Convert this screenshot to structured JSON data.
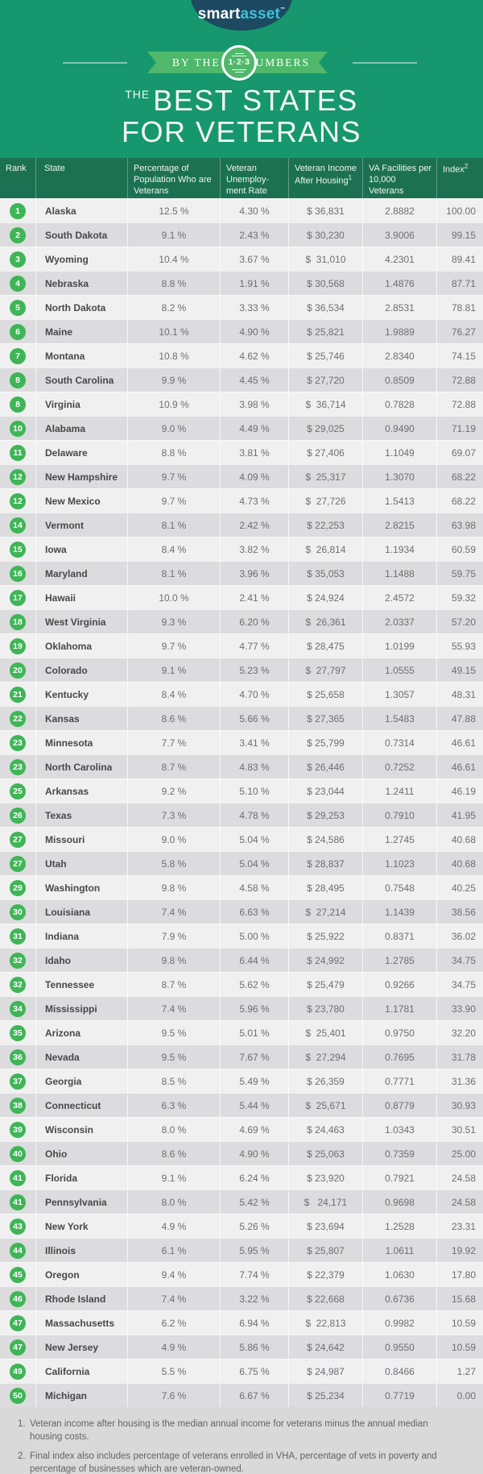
{
  "brand": {
    "smart": "smart",
    "asset": "asset",
    "tm": "™"
  },
  "banner": {
    "left": "BY THE",
    "circle": "1·2·3",
    "right": "NUMBERS"
  },
  "title": {
    "the": "THE",
    "line1": "BEST STATES",
    "line2": "FOR VETERANS"
  },
  "colors": {
    "background": "#16976d",
    "table_header": "#1c7153",
    "ribbon": "#4fb86a",
    "badge": "#3fb557",
    "row_light": "#f0f0f1",
    "row_dark": "#dcdcde",
    "logo_navy": "#1d4a61",
    "logo_teal": "#3fc0d4",
    "footer_bg": "#d9d9d9"
  },
  "chart_data": {
    "type": "table",
    "title": "The Best States for Veterans",
    "columns": {
      "rank": "Rank",
      "state": "State",
      "pct": "Percentage of Population Who are Veterans",
      "unemployment": "Veteran Unemploy-ment Rate",
      "income": "Veteran Income After Housing",
      "income_sup": "1",
      "va": "VA Facilities per 10,000 Veterans",
      "index": "Index",
      "index_sup": "2"
    },
    "rows": [
      {
        "rank": "1",
        "state": "Alaska",
        "pct": "12.5 %",
        "unemployment": "4.30 %",
        "income": "$ 36,831",
        "va": "2.8882",
        "index": "100.00"
      },
      {
        "rank": "2",
        "state": "South Dakota",
        "pct": "9.1 %",
        "unemployment": "2.43 %",
        "income": "$ 30,230",
        "va": "3.9006",
        "index": "99.15"
      },
      {
        "rank": "3",
        "state": "Wyoming",
        "pct": "10.4 %",
        "unemployment": "3.67 %",
        "income": "$  31,010",
        "va": "4.2301",
        "index": "89.41"
      },
      {
        "rank": "4",
        "state": "Nebraska",
        "pct": "8.8 %",
        "unemployment": "1.91 %",
        "income": "$ 30,568",
        "va": "1.4876",
        "index": "87.71"
      },
      {
        "rank": "5",
        "state": "North Dakota",
        "pct": "8.2 %",
        "unemployment": "3.33 %",
        "income": "$ 36,534",
        "va": "2.8531",
        "index": "78.81"
      },
      {
        "rank": "6",
        "state": "Maine",
        "pct": "10.1 %",
        "unemployment": "4.90 %",
        "income": "$ 25,821",
        "va": "1.9889",
        "index": "76.27"
      },
      {
        "rank": "7",
        "state": "Montana",
        "pct": "10.8 %",
        "unemployment": "4.62 %",
        "income": "$ 25,746",
        "va": "2.8340",
        "index": "74.15"
      },
      {
        "rank": "8",
        "state": "South Carolina",
        "pct": "9.9 %",
        "unemployment": "4.45 %",
        "income": "$ 27,720",
        "va": "0.8509",
        "index": "72.88"
      },
      {
        "rank": "8",
        "state": "Virginia",
        "pct": "10.9 %",
        "unemployment": "3.98 %",
        "income": "$  36,714",
        "va": "0.7828",
        "index": "72.88"
      },
      {
        "rank": "10",
        "state": "Alabama",
        "pct": "9.0 %",
        "unemployment": "4.49 %",
        "income": "$ 29,025",
        "va": "0.9490",
        "index": "71.19"
      },
      {
        "rank": "11",
        "state": "Delaware",
        "pct": "8.8 %",
        "unemployment": "3.81 %",
        "income": "$ 27,406",
        "va": "1.1049",
        "index": "69.07"
      },
      {
        "rank": "12",
        "state": "New Hampshire",
        "pct": "9.7 %",
        "unemployment": "4.09 %",
        "income": "$  25,317",
        "va": "1.3070",
        "index": "68.22"
      },
      {
        "rank": "12",
        "state": "New Mexico",
        "pct": "9.7 %",
        "unemployment": "4.73 %",
        "income": "$  27,726",
        "va": "1.5413",
        "index": "68.22"
      },
      {
        "rank": "14",
        "state": "Vermont",
        "pct": "8.1 %",
        "unemployment": "2.42 %",
        "income": "$ 22,253",
        "va": "2.8215",
        "index": "63.98"
      },
      {
        "rank": "15",
        "state": "Iowa",
        "pct": "8.4 %",
        "unemployment": "3.82 %",
        "income": "$  26,814",
        "va": "1.1934",
        "index": "60.59"
      },
      {
        "rank": "16",
        "state": "Maryland",
        "pct": "8.1 %",
        "unemployment": "3.96 %",
        "income": "$ 35,053",
        "va": "1.1488",
        "index": "59.75"
      },
      {
        "rank": "17",
        "state": "Hawaii",
        "pct": "10.0 %",
        "unemployment": "2.41 %",
        "income": "$ 24,924",
        "va": "2.4572",
        "index": "59.32"
      },
      {
        "rank": "18",
        "state": "West Virginia",
        "pct": "9.3 %",
        "unemployment": "6.20 %",
        "income": "$  26,361",
        "va": "2.0337",
        "index": "57.20"
      },
      {
        "rank": "19",
        "state": "Oklahoma",
        "pct": "9.7 %",
        "unemployment": "4.77 %",
        "income": "$ 28,475",
        "va": "1.0199",
        "index": "55.93"
      },
      {
        "rank": "20",
        "state": "Colorado",
        "pct": "9.1 %",
        "unemployment": "5.23 %",
        "income": "$  27,797",
        "va": "1.0555",
        "index": "49.15"
      },
      {
        "rank": "21",
        "state": "Kentucky",
        "pct": "8.4 %",
        "unemployment": "4.70 %",
        "income": "$ 25,658",
        "va": "1.3057",
        "index": "48.31"
      },
      {
        "rank": "22",
        "state": "Kansas",
        "pct": "8.6 %",
        "unemployment": "5.66 %",
        "income": "$ 27,365",
        "va": "1.5483",
        "index": "47.88"
      },
      {
        "rank": "23",
        "state": "Minnesota",
        "pct": "7.7 %",
        "unemployment": "3.41 %",
        "income": "$ 25,799",
        "va": "0.7314",
        "index": "46.61"
      },
      {
        "rank": "23",
        "state": "North Carolina",
        "pct": "8.7 %",
        "unemployment": "4.83 %",
        "income": "$ 26,446",
        "va": "0.7252",
        "index": "46.61"
      },
      {
        "rank": "25",
        "state": "Arkansas",
        "pct": "9.2 %",
        "unemployment": "5.10 %",
        "income": "$ 23,044",
        "va": "1.2411",
        "index": "46.19"
      },
      {
        "rank": "26",
        "state": "Texas",
        "pct": "7.3 %",
        "unemployment": "4.78 %",
        "income": "$ 29,253",
        "va": "0.7910",
        "index": "41.95"
      },
      {
        "rank": "27",
        "state": "Missouri",
        "pct": "9.0 %",
        "unemployment": "5.04 %",
        "income": "$ 24,586",
        "va": "1.2745",
        "index": "40.68"
      },
      {
        "rank": "27",
        "state": "Utah",
        "pct": "5.8 %",
        "unemployment": "5.04 %",
        "income": "$ 28,837",
        "va": "1.1023",
        "index": "40.68"
      },
      {
        "rank": "29",
        "state": "Washington",
        "pct": "9.8 %",
        "unemployment": "4.58 %",
        "income": "$ 28,495",
        "va": "0.7548",
        "index": "40.25"
      },
      {
        "rank": "30",
        "state": "Louisiana",
        "pct": "7.4 %",
        "unemployment": "6.63 %",
        "income": "$  27,214",
        "va": "1.1439",
        "index": "38.56"
      },
      {
        "rank": "31",
        "state": "Indiana",
        "pct": "7.9 %",
        "unemployment": "5.00 %",
        "income": "$ 25,922",
        "va": "0.8371",
        "index": "36.02"
      },
      {
        "rank": "32",
        "state": "Idaho",
        "pct": "9.8 %",
        "unemployment": "6.44 %",
        "income": "$ 24,992",
        "va": "1.2785",
        "index": "34.75"
      },
      {
        "rank": "32",
        "state": "Tennessee",
        "pct": "8.7 %",
        "unemployment": "5.62 %",
        "income": "$ 25,479",
        "va": "0.9266",
        "index": "34.75"
      },
      {
        "rank": "34",
        "state": "Mississippi",
        "pct": "7.4 %",
        "unemployment": "5.96 %",
        "income": "$ 23,780",
        "va": "1.1781",
        "index": "33.90"
      },
      {
        "rank": "35",
        "state": "Arizona",
        "pct": "9.5 %",
        "unemployment": "5.01 %",
        "income": "$  25,401",
        "va": "0.9750",
        "index": "32.20"
      },
      {
        "rank": "36",
        "state": "Nevada",
        "pct": "9.5 %",
        "unemployment": "7.67 %",
        "income": "$  27,294",
        "va": "0.7695",
        "index": "31.78"
      },
      {
        "rank": "37",
        "state": "Georgia",
        "pct": "8.5 %",
        "unemployment": "5.49 %",
        "income": "$ 26,359",
        "va": "0.7771",
        "index": "31.36"
      },
      {
        "rank": "38",
        "state": "Connecticut",
        "pct": "6.3 %",
        "unemployment": "5.44 %",
        "income": "$  25,671",
        "va": "0.8779",
        "index": "30.93"
      },
      {
        "rank": "39",
        "state": "Wisconsin",
        "pct": "8.0 %",
        "unemployment": "4.69 %",
        "income": "$ 24,463",
        "va": "1.0343",
        "index": "30.51"
      },
      {
        "rank": "40",
        "state": "Ohio",
        "pct": "8.6 %",
        "unemployment": "4.90 %",
        "income": "$ 25,063",
        "va": "0.7359",
        "index": "25.00"
      },
      {
        "rank": "41",
        "state": "Florida",
        "pct": "9.1 %",
        "unemployment": "6.24 %",
        "income": "$ 23,920",
        "va": "0.7921",
        "index": "24.58"
      },
      {
        "rank": "41",
        "state": "Pennsylvania",
        "pct": "8.0 %",
        "unemployment": "5.42 %",
        "income": "$   24,171",
        "va": "0.9698",
        "index": "24.58"
      },
      {
        "rank": "43",
        "state": "New York",
        "pct": "4.9 %",
        "unemployment": "5.26 %",
        "income": "$ 23,694",
        "va": "1.2528",
        "index": "23.31"
      },
      {
        "rank": "44",
        "state": "Illinois",
        "pct": "6.1 %",
        "unemployment": "5.95 %",
        "income": "$ 25,807",
        "va": "1.0611",
        "index": "19.92"
      },
      {
        "rank": "45",
        "state": "Oregon",
        "pct": "9.4 %",
        "unemployment": "7.74 %",
        "income": "$ 22,379",
        "va": "1.0630",
        "index": "17.80"
      },
      {
        "rank": "46",
        "state": "Rhode Island",
        "pct": "7.4 %",
        "unemployment": "3.22 %",
        "income": "$ 22,668",
        "va": "0.6736",
        "index": "15.68"
      },
      {
        "rank": "47",
        "state": "Massachusetts",
        "pct": "6.2 %",
        "unemployment": "6.94 %",
        "income": "$  22,813",
        "va": "0.9982",
        "index": "10.59"
      },
      {
        "rank": "47",
        "state": "New Jersey",
        "pct": "4.9 %",
        "unemployment": "5.86 %",
        "income": "$ 24,642",
        "va": "0.9550",
        "index": "10.59"
      },
      {
        "rank": "49",
        "state": "California",
        "pct": "5.5 %",
        "unemployment": "6.75 %",
        "income": "$ 24,987",
        "va": "0.8466",
        "index": "1.27"
      },
      {
        "rank": "50",
        "state": "Michigan",
        "pct": "7.6 %",
        "unemployment": "6.67 %",
        "income": "$ 25,234",
        "va": "0.7719",
        "index": "0.00"
      }
    ]
  },
  "footnotes": [
    {
      "num": "1.",
      "text": "Veteran income after housing is the median annual income for veterans minus the annual median housing costs."
    },
    {
      "num": "2.",
      "text": "Final index also includes percentage of veterans enrolled in VHA, percentage of vets in poverty and percentage of businesses which are veteran-owned."
    }
  ]
}
